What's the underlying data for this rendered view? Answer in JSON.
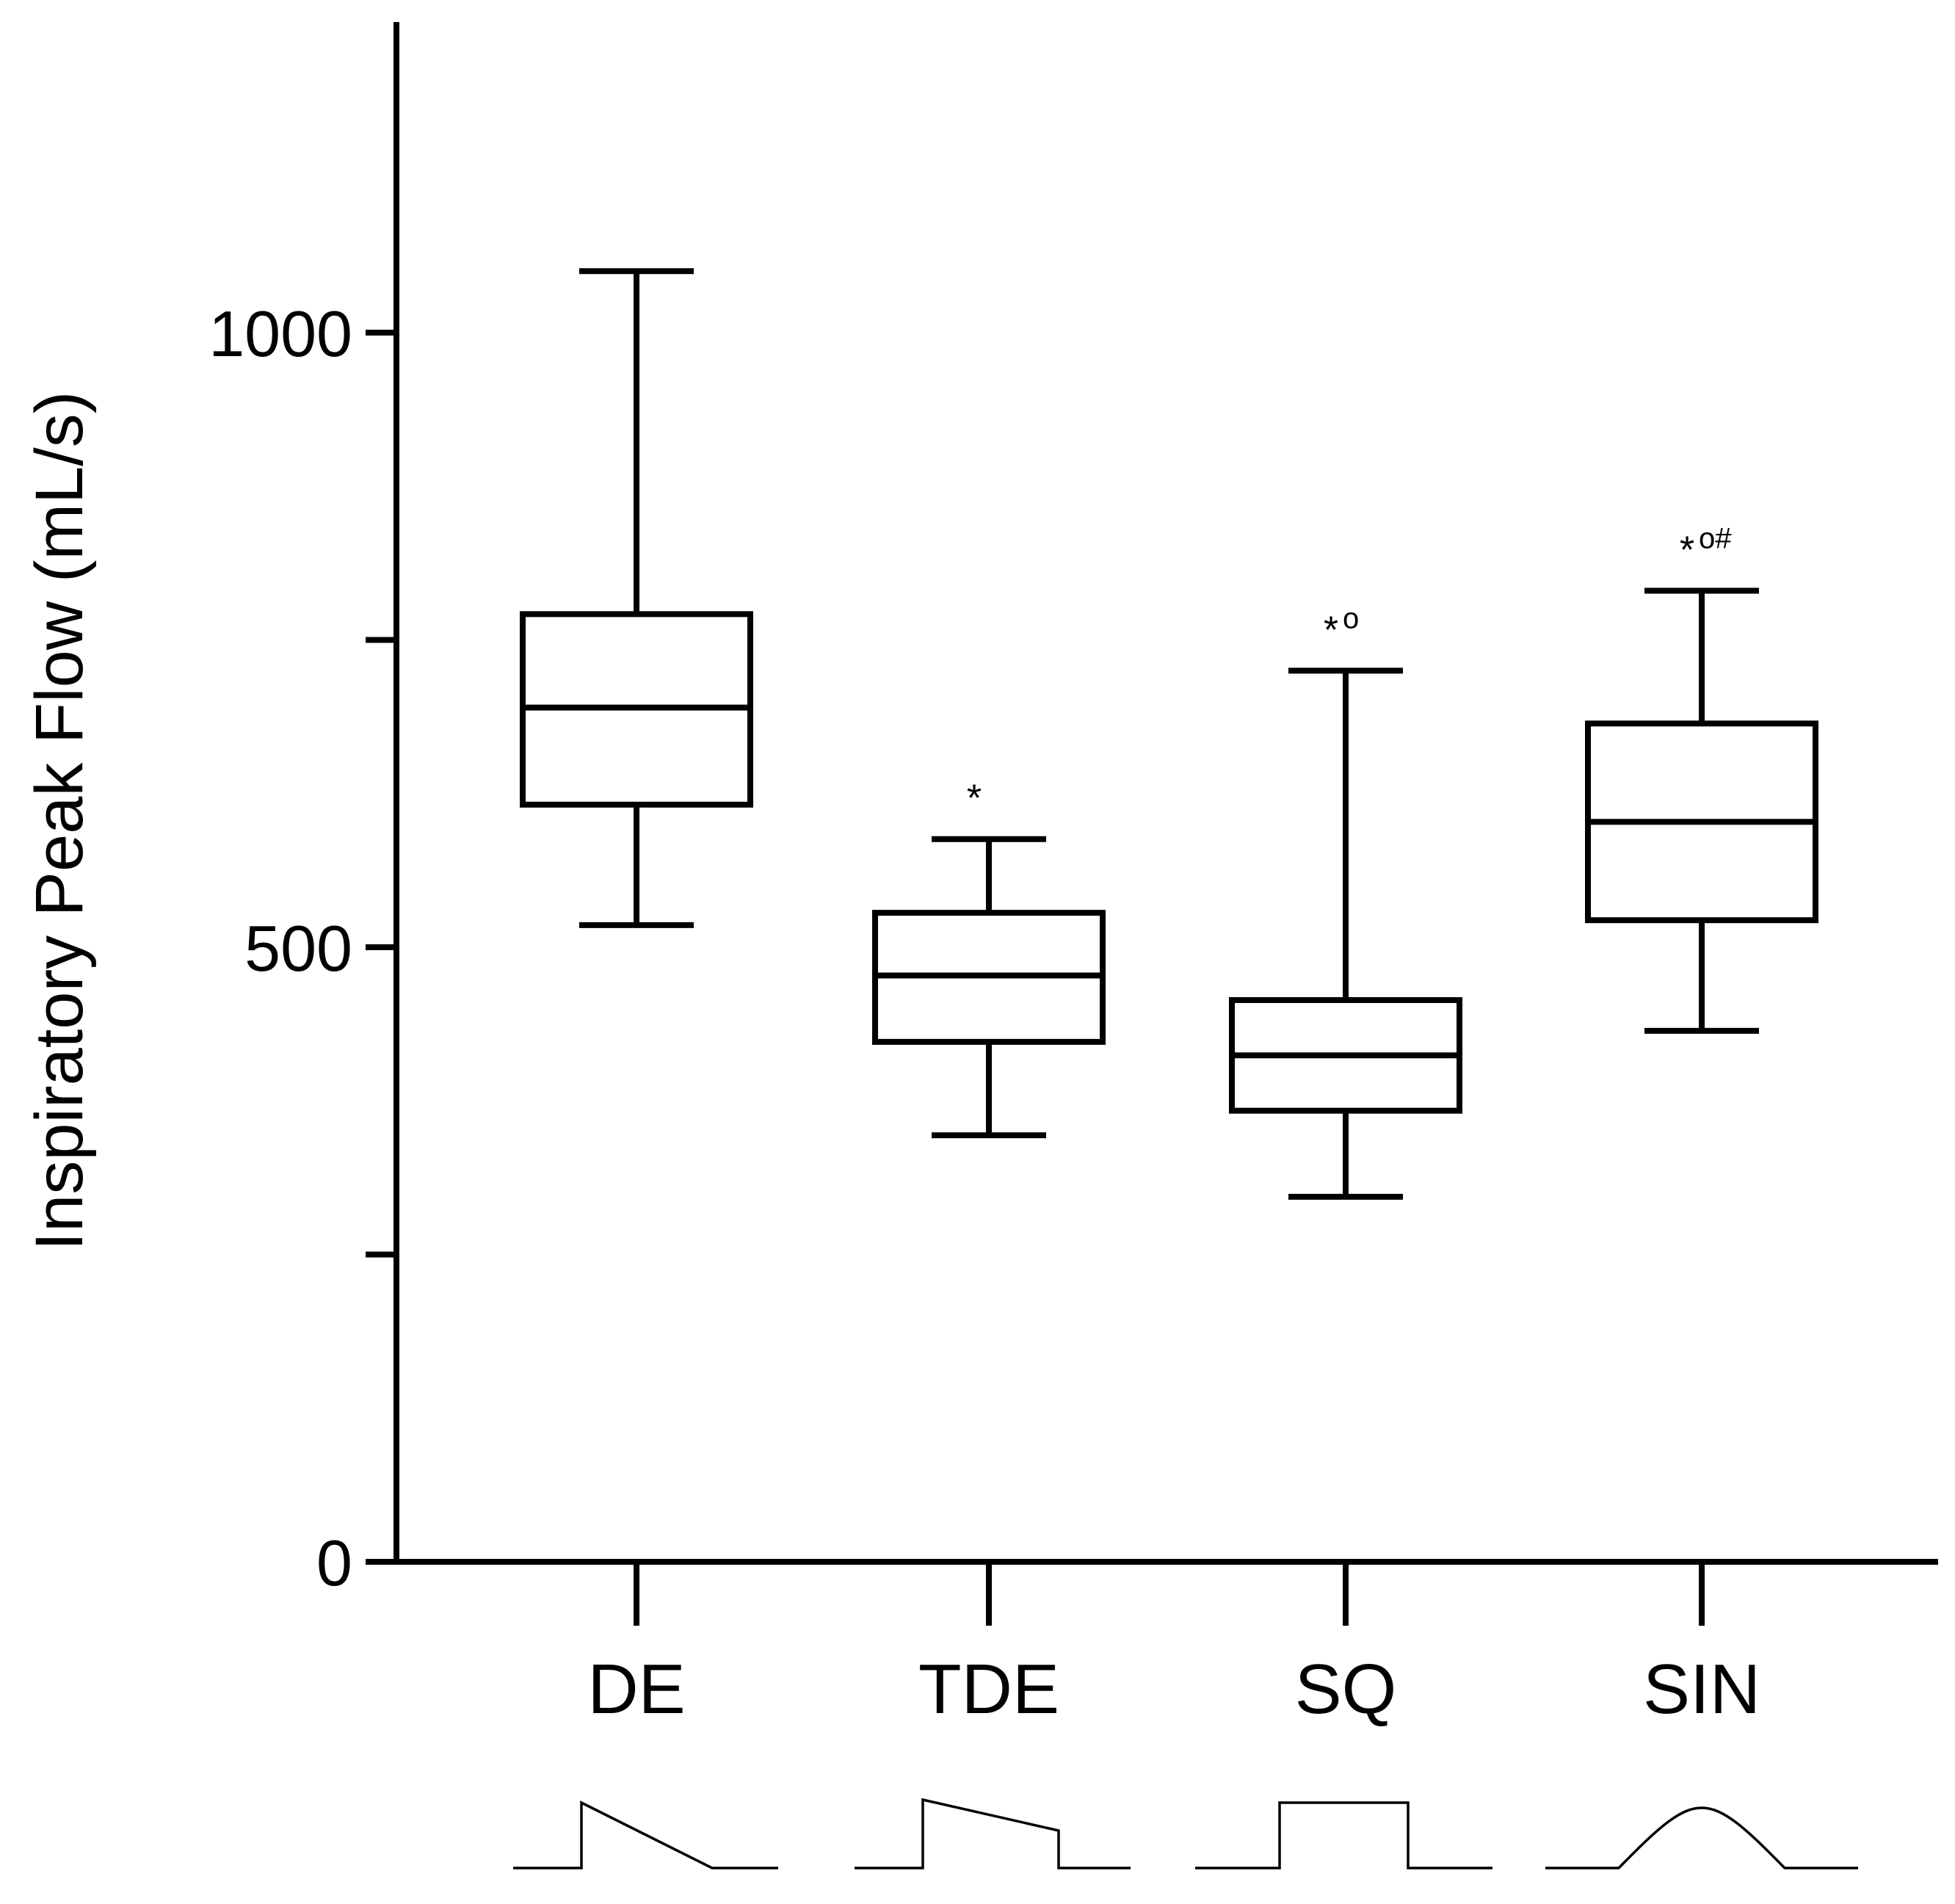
{
  "chart_data": {
    "type": "box",
    "ylabel": "Inspiratory Peak Flow (mL/s)",
    "xlabel": "",
    "ylim": [
      0,
      1250
    ],
    "yticks": [
      0,
      250,
      500,
      750,
      1000
    ],
    "ytick_labels": [
      "0",
      "",
      "500",
      "",
      "1000"
    ],
    "categories": [
      "DE",
      "TDE",
      "SQ",
      "SIN"
    ],
    "boxes": [
      {
        "name": "DE",
        "min": 518,
        "q1": 616,
        "median": 695,
        "q3": 771,
        "max": 1050,
        "annotation": "",
        "annotation_sup": "",
        "waveform": "decelerating"
      },
      {
        "name": "TDE",
        "min": 347,
        "q1": 423,
        "median": 477,
        "q3": 528,
        "max": 588,
        "annotation": "*",
        "annotation_sup": "",
        "waveform": "truncated-decelerating"
      },
      {
        "name": "SQ",
        "min": 297,
        "q1": 367,
        "median": 412,
        "q3": 457,
        "max": 725,
        "annotation": "*",
        "annotation_sup": "o",
        "waveform": "square"
      },
      {
        "name": "SIN",
        "min": 432,
        "q1": 522,
        "median": 602,
        "q3": 682,
        "max": 790,
        "annotation": "*",
        "annotation_sup": "o#",
        "waveform": "sinusoidal"
      }
    ]
  }
}
